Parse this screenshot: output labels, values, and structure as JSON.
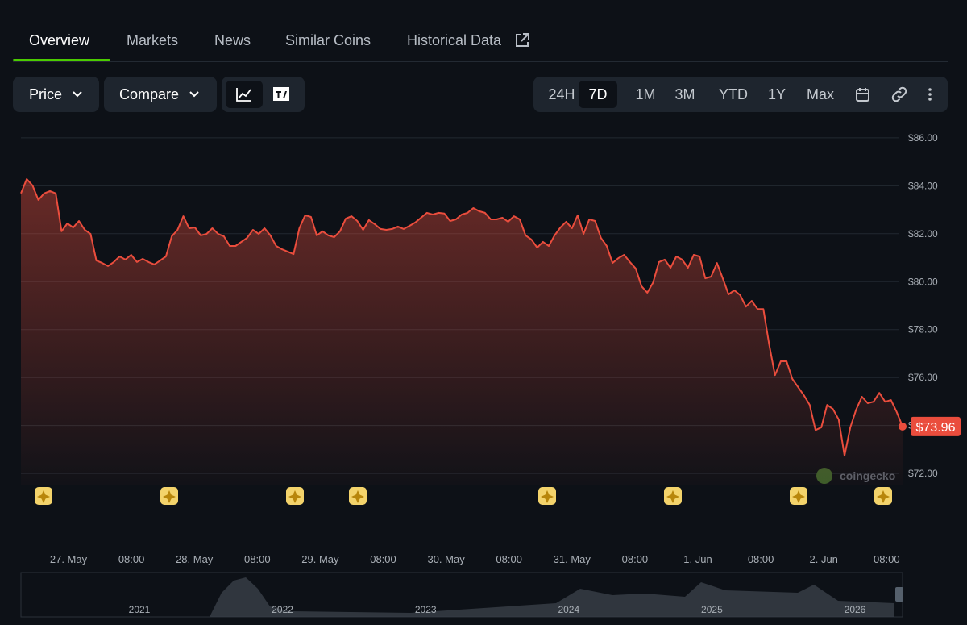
{
  "tabs": [
    "Overview",
    "Markets",
    "News",
    "Similar Coins",
    "Historical Data"
  ],
  "toolbar": {
    "price": "Price",
    "compare": "Compare",
    "ranges": [
      "24H",
      "7D",
      "1M",
      "3M",
      "YTD",
      "1Y",
      "Max"
    ]
  },
  "chart_data": {
    "type": "line",
    "color": "#ea4d3d",
    "values": [
      83.68,
      84.28,
      84.01,
      83.41,
      83.68,
      83.78,
      83.68,
      82.1,
      82.43,
      82.26,
      82.53,
      82.16,
      81.99,
      80.88,
      80.78,
      80.65,
      80.82,
      81.05,
      80.92,
      81.12,
      80.82,
      80.95,
      80.82,
      80.72,
      80.88,
      81.05,
      81.89,
      82.16,
      82.73,
      82.23,
      82.26,
      81.93,
      81.99,
      82.23,
      81.99,
      81.89,
      81.49,
      81.49,
      81.66,
      81.83,
      82.16,
      81.99,
      82.23,
      81.93,
      81.49,
      81.35,
      81.25,
      81.15,
      82.23,
      82.77,
      82.7,
      81.93,
      82.1,
      81.93,
      81.86,
      82.1,
      82.63,
      82.73,
      82.53,
      82.16,
      82.57,
      82.4,
      82.2,
      82.16,
      82.2,
      82.3,
      82.2,
      82.33,
      82.47,
      82.67,
      82.87,
      82.8,
      82.87,
      82.84,
      82.53,
      82.6,
      82.8,
      82.87,
      83.07,
      82.94,
      82.87,
      82.6,
      82.6,
      82.67,
      82.5,
      82.73,
      82.6,
      81.93,
      81.76,
      81.42,
      81.66,
      81.49,
      81.93,
      82.26,
      82.5,
      82.23,
      82.77,
      81.99,
      82.6,
      82.53,
      81.83,
      81.49,
      80.78,
      80.98,
      81.12,
      80.82,
      80.55,
      79.81,
      79.54,
      79.97,
      80.82,
      80.92,
      80.58,
      81.05,
      80.92,
      80.58,
      81.12,
      81.05,
      80.14,
      80.21,
      80.78,
      80.14,
      79.47,
      79.64,
      79.44,
      78.96,
      79.2,
      78.86,
      78.86,
      77.38,
      76.1,
      76.68,
      76.68,
      75.94,
      75.6,
      75.26,
      74.86,
      73.81,
      73.92,
      74.86,
      74.69,
      74.25,
      72.74,
      73.92,
      74.66,
      75.2,
      74.93,
      74.99,
      75.36,
      74.99,
      75.06,
      74.56,
      73.96
    ],
    "last_value_label": "$73.96",
    "ylim": [
      71.5,
      86.5
    ],
    "yticks": [
      {
        "value": 72,
        "label": "$72.00"
      },
      {
        "value": 74,
        "label": "$74.00"
      },
      {
        "value": 76,
        "label": "$76.00"
      },
      {
        "value": 78,
        "label": "$78.00"
      },
      {
        "value": 80,
        "label": "$80.00"
      },
      {
        "value": 82,
        "label": "$82.00"
      },
      {
        "value": 84,
        "label": "$84.00"
      },
      {
        "value": 86,
        "label": "$86.00"
      }
    ],
    "xtick_labels": [
      "27. May",
      "08:00",
      "28. May",
      "08:00",
      "29. May",
      "08:00",
      "30. May",
      "08:00",
      "31. May",
      "08:00",
      "1. Jun",
      "08:00",
      "2. Jun",
      "08:00"
    ],
    "grid": true
  },
  "watermark": "coingecko",
  "navigator_years": [
    "2021",
    "2022",
    "2023",
    "2024",
    "2025",
    "2026"
  ]
}
